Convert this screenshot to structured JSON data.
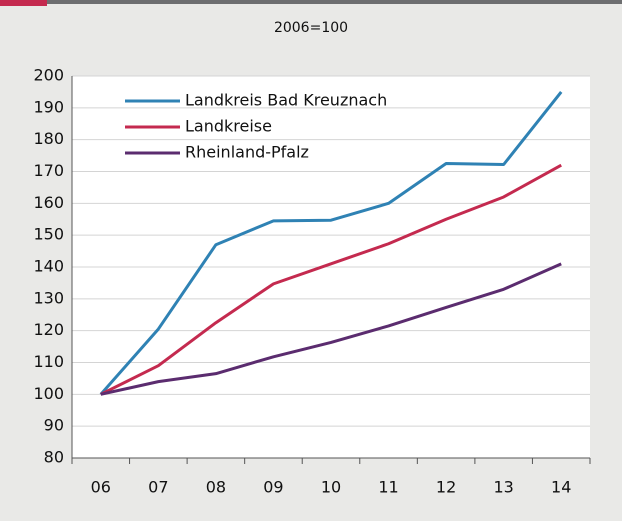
{
  "chart_data": {
    "type": "line",
    "subtitle": "2006=100",
    "categories": [
      "06",
      "07",
      "08",
      "09",
      "10",
      "11",
      "12",
      "13",
      "14"
    ],
    "series": [
      {
        "name": "Landkreis Bad Kreuznach",
        "color": "#2f82b4",
        "values": [
          100,
          120.5,
          147,
          154.5,
          154.7,
          160,
          172.5,
          172.2,
          195
        ]
      },
      {
        "name": "Landkreise",
        "color": "#c42a4f",
        "values": [
          100,
          109,
          122.5,
          134.7,
          141,
          147.3,
          155,
          162,
          172
        ]
      },
      {
        "name": "Rheinland-Pfalz",
        "color": "#5b2c6f",
        "values": [
          100,
          104,
          106.5,
          111.8,
          116.3,
          121.5,
          127.3,
          133,
          141
        ]
      }
    ],
    "ylim": [
      80,
      200
    ],
    "yticks": [
      80,
      90,
      100,
      110,
      120,
      130,
      140,
      150,
      160,
      170,
      180,
      190,
      200
    ],
    "grid": true,
    "legend": "upper left"
  }
}
